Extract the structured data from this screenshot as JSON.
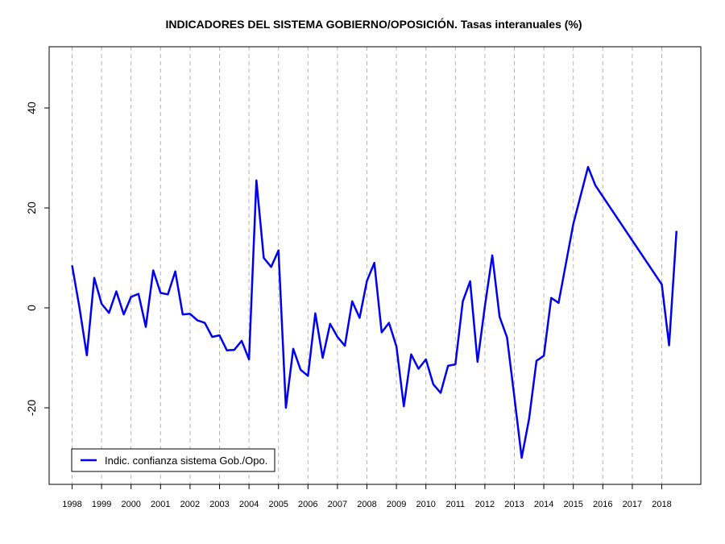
{
  "chart_data": {
    "type": "line",
    "title": "INDICADORES DEL SISTEMA GOBIERNO/OPOSICIÓN. Tasas interanuales (%)",
    "xlabel": "",
    "ylabel": "",
    "xlim": [
      1997.2,
      2019.3
    ],
    "ylim": [
      -35,
      52
    ],
    "x_ticks": [
      "1998",
      "1999",
      "2000",
      "2001",
      "2002",
      "2003",
      "2004",
      "2005",
      "2006",
      "2007",
      "2008",
      "2009",
      "2010",
      "2011",
      "2012",
      "2013",
      "2014",
      "2015",
      "2016",
      "2017",
      "2018"
    ],
    "y_ticks": [
      40,
      20,
      0,
      -20
    ],
    "y_tick_labels": [
      "40",
      "20",
      "0",
      "-20"
    ],
    "grid": "vertical dashed at year ticks",
    "legend_position": "bottom-left",
    "series": [
      {
        "name": "Indic. confianza sistema Gob./Opo.",
        "color": "#0000ee",
        "x": [
          1998.0,
          1998.25,
          1998.5,
          1998.75,
          1999.0,
          1999.25,
          1999.5,
          1999.75,
          2000.0,
          2000.25,
          2000.5,
          2000.75,
          2001.0,
          2001.25,
          2001.5,
          2001.75,
          2002.0,
          2002.25,
          2002.5,
          2002.75,
          2003.0,
          2003.25,
          2003.5,
          2003.75,
          2004.0,
          2004.25,
          2004.5,
          2004.75,
          2005.0,
          2005.25,
          2005.5,
          2005.75,
          2006.0,
          2006.25,
          2006.5,
          2006.75,
          2007.0,
          2007.25,
          2007.5,
          2007.75,
          2008.0,
          2008.25,
          2008.5,
          2008.75,
          2009.0,
          2009.25,
          2009.5,
          2009.75,
          2010.0,
          2010.25,
          2010.5,
          2010.75,
          2011.0,
          2011.25,
          2011.5,
          2011.75,
          2012.0,
          2012.25,
          2012.5,
          2012.75,
          2013.0,
          2013.25,
          2013.5,
          2013.75,
          2014.0,
          2014.25,
          2014.5,
          2015.0,
          2015.5,
          2015.75,
          2018.0,
          2018.25,
          2018.5
        ],
        "y": [
          8.5,
          0.0,
          -9.5,
          6.0,
          0.8,
          -1.0,
          3.3,
          -1.3,
          2.2,
          2.8,
          -3.8,
          7.5,
          3.0,
          2.7,
          7.3,
          -1.3,
          -1.2,
          -2.5,
          -3.0,
          -5.8,
          -5.5,
          -8.5,
          -8.4,
          -6.6,
          -10.3,
          25.5,
          10.0,
          8.2,
          11.5,
          -20.0,
          -8.2,
          -12.4,
          -13.6,
          -1.1,
          -10.0,
          -3.2,
          -5.8,
          -7.6,
          1.3,
          -2.0,
          5.4,
          9.0,
          -4.9,
          -3.0,
          -7.7,
          -19.7,
          -9.3,
          -12.2,
          -10.3,
          -15.3,
          -17.0,
          -11.6,
          -11.3,
          1.3,
          5.3,
          -10.8,
          0.3,
          10.5,
          -1.8,
          -5.9,
          -17.8,
          -30.0,
          -22.2,
          -10.6,
          -9.6,
          2.0,
          1.0,
          16.8,
          28.2,
          24.5,
          4.7,
          -7.5,
          15.4
        ]
      }
    ]
  }
}
